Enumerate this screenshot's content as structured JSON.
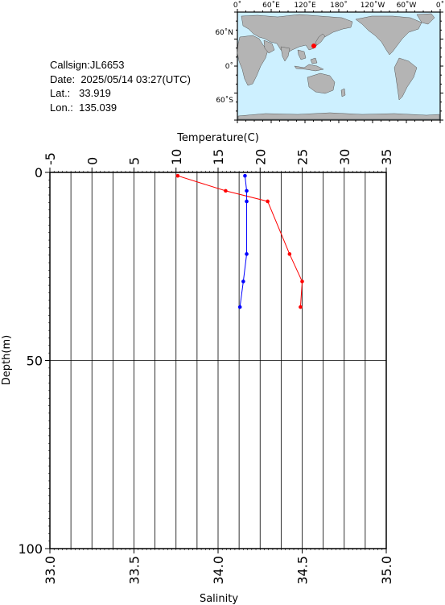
{
  "station": {
    "callsign_label": "Callsign:",
    "callsign": "JL6653",
    "date_label": "Date:",
    "date": "2025/05/14 03:27(UTC)",
    "lat_label": "Lat.:",
    "lat": "33.919",
    "lon_label": "Lon.:",
    "lon": "135.039"
  },
  "map": {
    "top_tick_labels": [
      "0˚",
      "60˚E",
      "120˚E",
      "180˚",
      "120˚W",
      "60˚W",
      "0˚"
    ],
    "left_tick_labels": [
      "60˚N",
      "0˚",
      "60˚S"
    ],
    "ocean_color": "#cdf0ff",
    "land_color": "#b4b4b4",
    "marker_color": "#ff0000"
  },
  "chart_data": {
    "type": "line",
    "top_axis": {
      "label": "Temperature(C)",
      "range": [
        -5,
        35
      ],
      "tick_labels": [
        "-5",
        "0",
        "5",
        "10",
        "15",
        "20",
        "25",
        "30",
        "35"
      ]
    },
    "bottom_axis": {
      "label": "Salinity",
      "range": [
        33.0,
        35.0
      ],
      "tick_labels": [
        "33.0",
        "33.5",
        "34.0",
        "34.5",
        "35.0"
      ]
    },
    "y_axis": {
      "label": "Depth(m)",
      "range": [
        0,
        100
      ],
      "inverted": true,
      "tick_labels": [
        "0",
        "50",
        "100"
      ]
    },
    "series": [
      {
        "name": "Temperature",
        "axis": "top",
        "color": "#ff0000",
        "depth": [
          0.9,
          4.9,
          7.7,
          21.7,
          29.0,
          35.8
        ],
        "values": [
          10.2,
          15.9,
          20.9,
          23.5,
          25.0,
          24.8
        ]
      },
      {
        "name": "Salinity",
        "axis": "bottom",
        "color": "#0000ff",
        "depth": [
          0.9,
          4.9,
          7.7,
          21.7,
          29.0,
          35.8
        ],
        "values": [
          34.16,
          34.17,
          34.17,
          34.17,
          34.15,
          34.13
        ]
      }
    ],
    "grid": true
  }
}
